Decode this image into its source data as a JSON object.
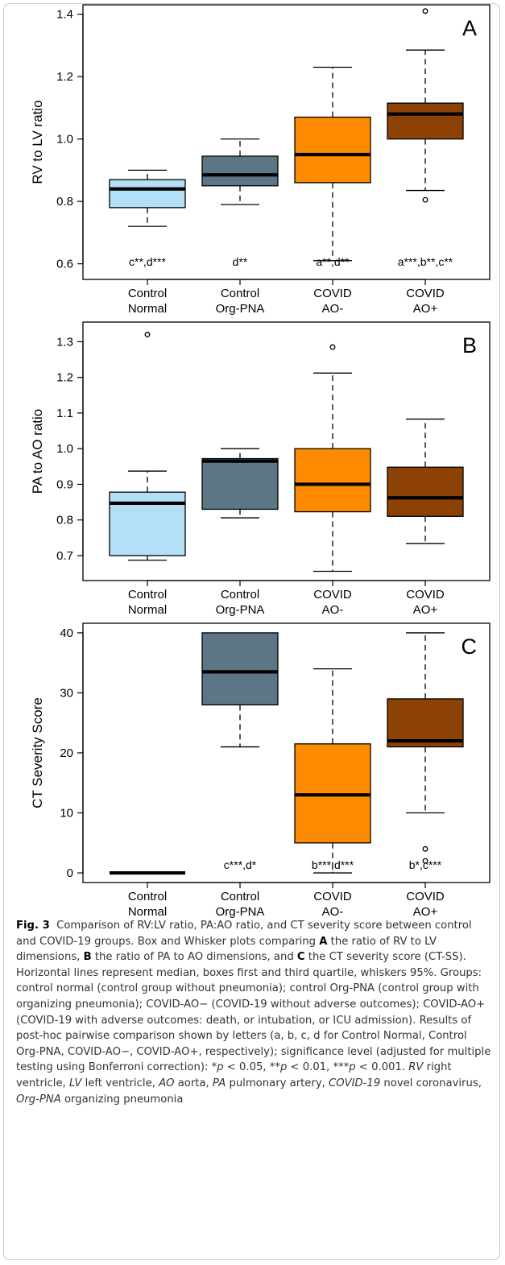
{
  "chart_data": [
    {
      "type": "box",
      "panel_label": "A",
      "ylabel": "RV to LV ratio",
      "ylim": [
        0.55,
        1.43
      ],
      "yticks": [
        "0.6",
        "0.8",
        "1.0",
        "1.2",
        "1.4"
      ],
      "ytick_values": [
        0.6,
        0.8,
        1.0,
        1.2,
        1.4
      ],
      "categories": [
        "Control\nNormal",
        "Control\nOrg-PNA",
        "COVID\nAO-",
        "COVID\nAO+"
      ],
      "colors": [
        "#b3e0f7",
        "#5c7685",
        "#ff8c00",
        "#8b4204"
      ],
      "boxes": [
        {
          "min": 0.72,
          "q1": 0.78,
          "median": 0.84,
          "q3": 0.87,
          "max": 0.9,
          "outliers": [],
          "annotation": "c**,d***"
        },
        {
          "min": 0.79,
          "q1": 0.85,
          "median": 0.885,
          "q3": 0.945,
          "max": 1.0,
          "outliers": [],
          "annotation": "d**"
        },
        {
          "min": 0.61,
          "q1": 0.86,
          "median": 0.95,
          "q3": 1.07,
          "max": 1.23,
          "outliers": [],
          "annotation": "a**,d**"
        },
        {
          "min": 0.835,
          "q1": 1.0,
          "median": 1.08,
          "q3": 1.115,
          "max": 1.285,
          "outliers": [
            0.805,
            1.41
          ],
          "annotation": "a***,b**,c**"
        }
      ]
    },
    {
      "type": "box",
      "panel_label": "B",
      "ylabel": "PA to AO ratio",
      "ylim": [
        0.63,
        1.355
      ],
      "yticks": [
        "0.7",
        "0.8",
        "0.9",
        "1.0",
        "1.1",
        "1.2",
        "1.3"
      ],
      "ytick_values": [
        0.7,
        0.8,
        0.9,
        1.0,
        1.1,
        1.2,
        1.3
      ],
      "categories": [
        "Control\nNormal",
        "Control\nOrg-PNA",
        "COVID\nAO-",
        "COVID\nAO+"
      ],
      "colors": [
        "#b3e0f7",
        "#5c7685",
        "#ff8c00",
        "#8b4204"
      ],
      "boxes": [
        {
          "min": 0.687,
          "q1": 0.7,
          "median": 0.847,
          "q3": 0.878,
          "max": 0.937,
          "outliers": [
            1.32
          ],
          "annotation": ""
        },
        {
          "min": 0.806,
          "q1": 0.83,
          "median": 0.965,
          "q3": 0.972,
          "max": 1.0,
          "outliers": [],
          "annotation": ""
        },
        {
          "min": 0.656,
          "q1": 0.823,
          "median": 0.9,
          "q3": 1.0,
          "max": 1.212,
          "outliers": [
            1.285
          ],
          "annotation": ""
        },
        {
          "min": 0.734,
          "q1": 0.81,
          "median": 0.862,
          "q3": 0.948,
          "max": 1.083,
          "outliers": [],
          "annotation": ""
        }
      ]
    },
    {
      "type": "box",
      "panel_label": "C",
      "ylabel": "CT Severity Score",
      "ylim": [
        -1.6,
        41.6
      ],
      "yticks": [
        "0",
        "10",
        "20",
        "30",
        "40"
      ],
      "ytick_values": [
        0,
        10,
        20,
        30,
        40
      ],
      "categories": [
        "Control\nNormal",
        "Control\nOrg-PNA",
        "COVID\nAO-",
        "COVID\nAO+"
      ],
      "colors": [
        "#b3e0f7",
        "#5c7685",
        "#ff8c00",
        "#8b4204"
      ],
      "boxes": [
        {
          "min": 0,
          "q1": 0,
          "median": 0,
          "q3": 0,
          "max": 0,
          "outliers": [],
          "annotation": ""
        },
        {
          "min": 21,
          "q1": 28,
          "median": 33.5,
          "q3": 40,
          "max": 40,
          "outliers": [],
          "annotation": "c***,d*"
        },
        {
          "min": 0,
          "q1": 5,
          "median": 13,
          "q3": 21.5,
          "max": 34,
          "outliers": [],
          "annotation": "b***,d***"
        },
        {
          "min": 10,
          "q1": 21,
          "median": 22,
          "q3": 29,
          "max": 40,
          "outliers": [
            2,
            4
          ],
          "annotation": "b*,c***"
        }
      ]
    }
  ],
  "caption": {
    "fig_label": "Fig. 3",
    "title": "Comparison of RV:LV ratio, PA:AO ratio, and CT severity score between control and COVID-19 groups.",
    "s1": "Box and Whisker plots comparing",
    "A": "A",
    "s2": "the ratio of RV to LV dimensions,",
    "B": "B",
    "s3": "the ratio of PA to AO dimensions, and",
    "C": "C",
    "s4": "the CT severity score (CT-SS). Horizontal lines represent median, boxes first and third quartile, whiskers 95%. Groups: control normal (control group without pneumonia); control Org-PNA (control group with organizing pneumonia); COVID-AO− (COVID-19 without adverse outcomes); COVID-AO+ (COVID-19 with adverse outcomes: death, or intubation, or ICU admission). Results of post-hoc pairwise comparison shown by letters (a, b, c, d for Control Normal, Control Org-PNA, COVID-AO−, COVID-AO+, respectively); significance level (adjusted for multiple testing using Bonferroni correction): *",
    "p1": "p",
    "s5": " < 0.05, **",
    "p2": "p",
    "s6": " < 0.01, ***",
    "p3": "p",
    "s7": " < 0.001.",
    "rv": "RV",
    "s8": " right ventricle,",
    "lv": "LV",
    "s9": " left ventricle,",
    "ao": "AO",
    "s10": " aorta,",
    "pa": "PA",
    "s11": " pulmonary artery,",
    "covid": "COVID-19",
    "s12": " novel coronavirus,",
    "org": "Org-PNA",
    "s13": " organizing pneumonia"
  }
}
